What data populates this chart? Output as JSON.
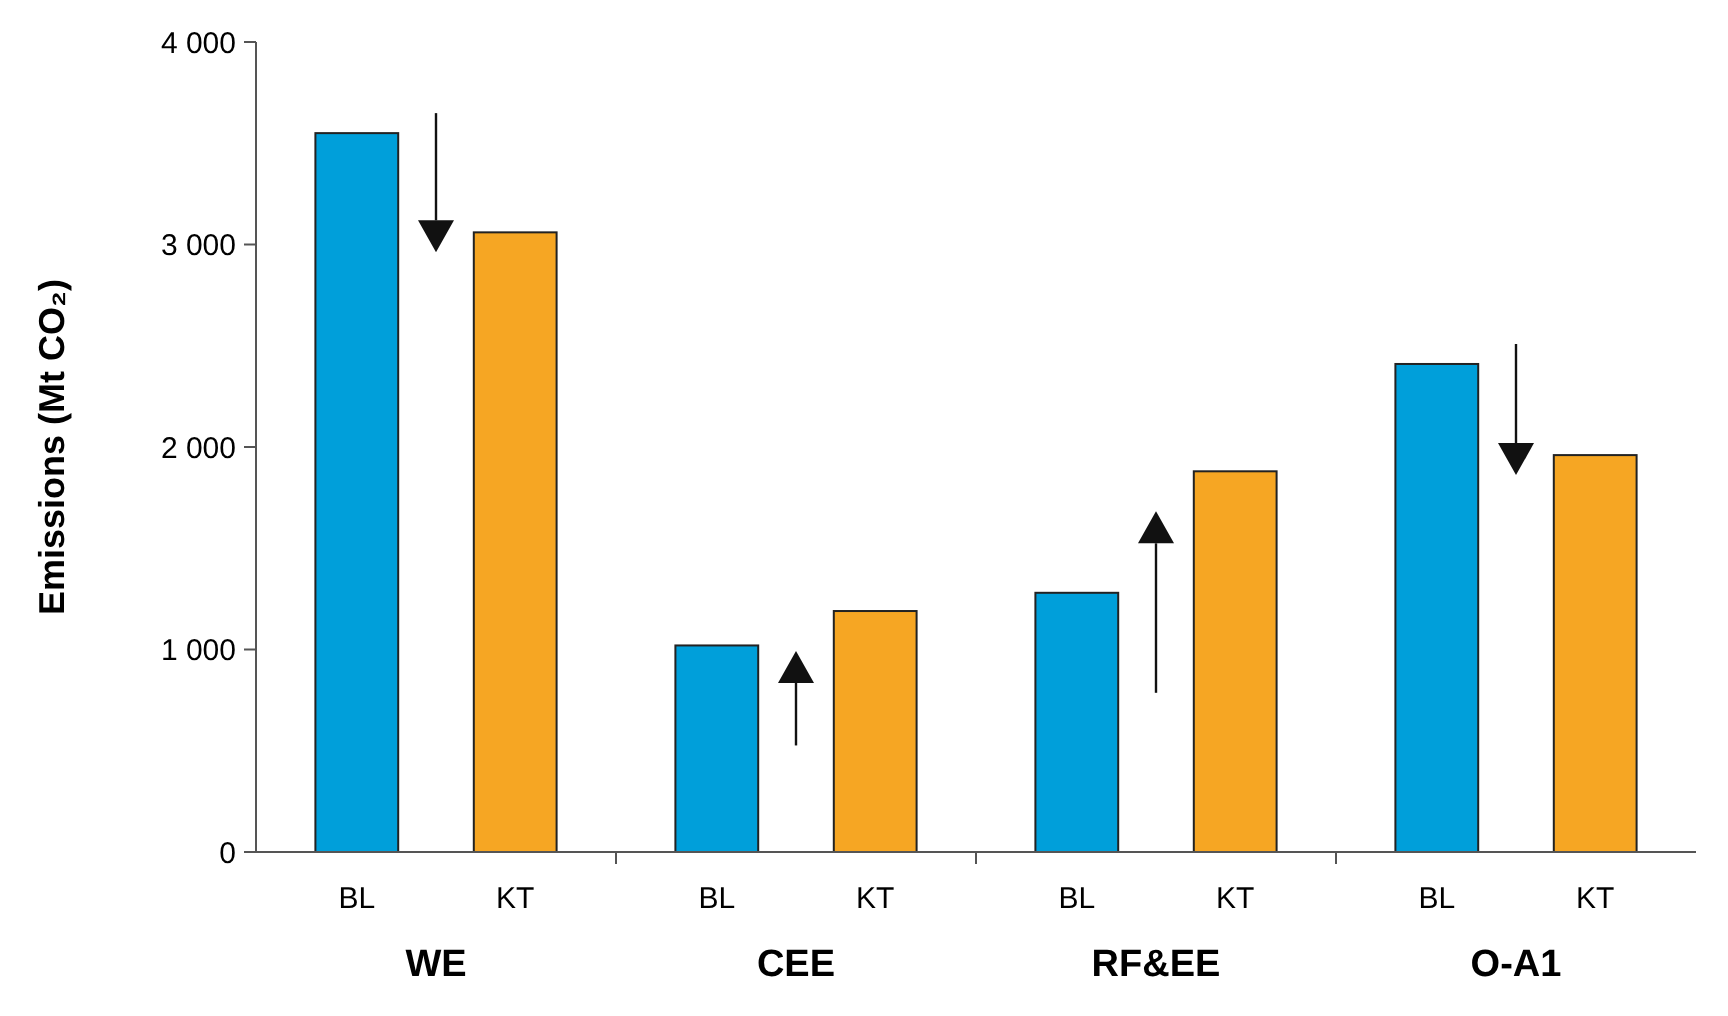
{
  "chart_data": {
    "type": "bar",
    "ylabel": "Emissions (Mt CO₂)",
    "categories": [
      "WE",
      "CEE",
      "RF&EE",
      "O-A1"
    ],
    "series": [
      {
        "name": "BL",
        "color": "#009fda",
        "values": [
          3550,
          1020,
          1280,
          2410
        ]
      },
      {
        "name": "KT",
        "color": "#f6a623",
        "values": [
          3060,
          1190,
          1880,
          1960
        ]
      }
    ],
    "ylim": [
      0,
      4000
    ],
    "yticks": [
      {
        "value": 0,
        "label": "0"
      },
      {
        "value": 1000,
        "label": "1 000"
      },
      {
        "value": 2000,
        "label": "2 000"
      },
      {
        "value": 3000,
        "label": "3 000"
      },
      {
        "value": 4000,
        "label": "4 000"
      }
    ],
    "grid": false
  }
}
